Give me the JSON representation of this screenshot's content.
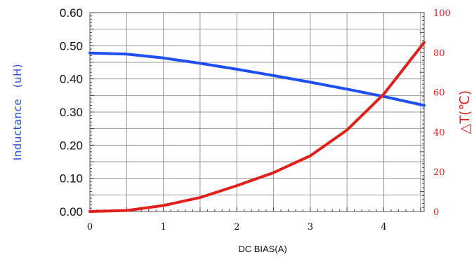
{
  "chart_data": {
    "type": "line",
    "xlabel": "DC BIAS(A)",
    "ylabel_left": "Inductance　(uH)",
    "ylabel_right": "△T(℃)",
    "xlim": [
      0,
      4.55
    ],
    "ylim_left": [
      0,
      0.6
    ],
    "ylim_right": [
      0,
      100
    ],
    "x_ticks": [
      "0",
      "1",
      "2",
      "3",
      "4"
    ],
    "y_left_ticks": [
      "0.00",
      "0.10",
      "0.20",
      "0.30",
      "0.40",
      "0.50",
      "0.60"
    ],
    "y_right_ticks": [
      "0",
      "20",
      "40",
      "60",
      "80",
      "100"
    ],
    "grid": true,
    "colors": {
      "inductance": "#1f4ff0",
      "temperature": "#e0201c",
      "grid": "#9a9a9a"
    },
    "series": [
      {
        "axis": "left",
        "x": [
          0,
          0.5,
          1.0,
          1.5,
          2.0,
          2.5,
          3.0,
          3.5,
          4.0,
          4.55
        ],
        "values": [
          0.478,
          0.475,
          0.463,
          0.447,
          0.429,
          0.41,
          0.39,
          0.369,
          0.347,
          0.32
        ]
      },
      {
        "axis": "right",
        "x": [
          0,
          0.5,
          1.0,
          1.5,
          2.0,
          2.5,
          3.0,
          3.5,
          4.0,
          4.55
        ],
        "values": [
          0,
          0.5,
          3,
          7,
          13,
          19.5,
          28,
          41,
          59,
          85
        ]
      }
    ]
  }
}
